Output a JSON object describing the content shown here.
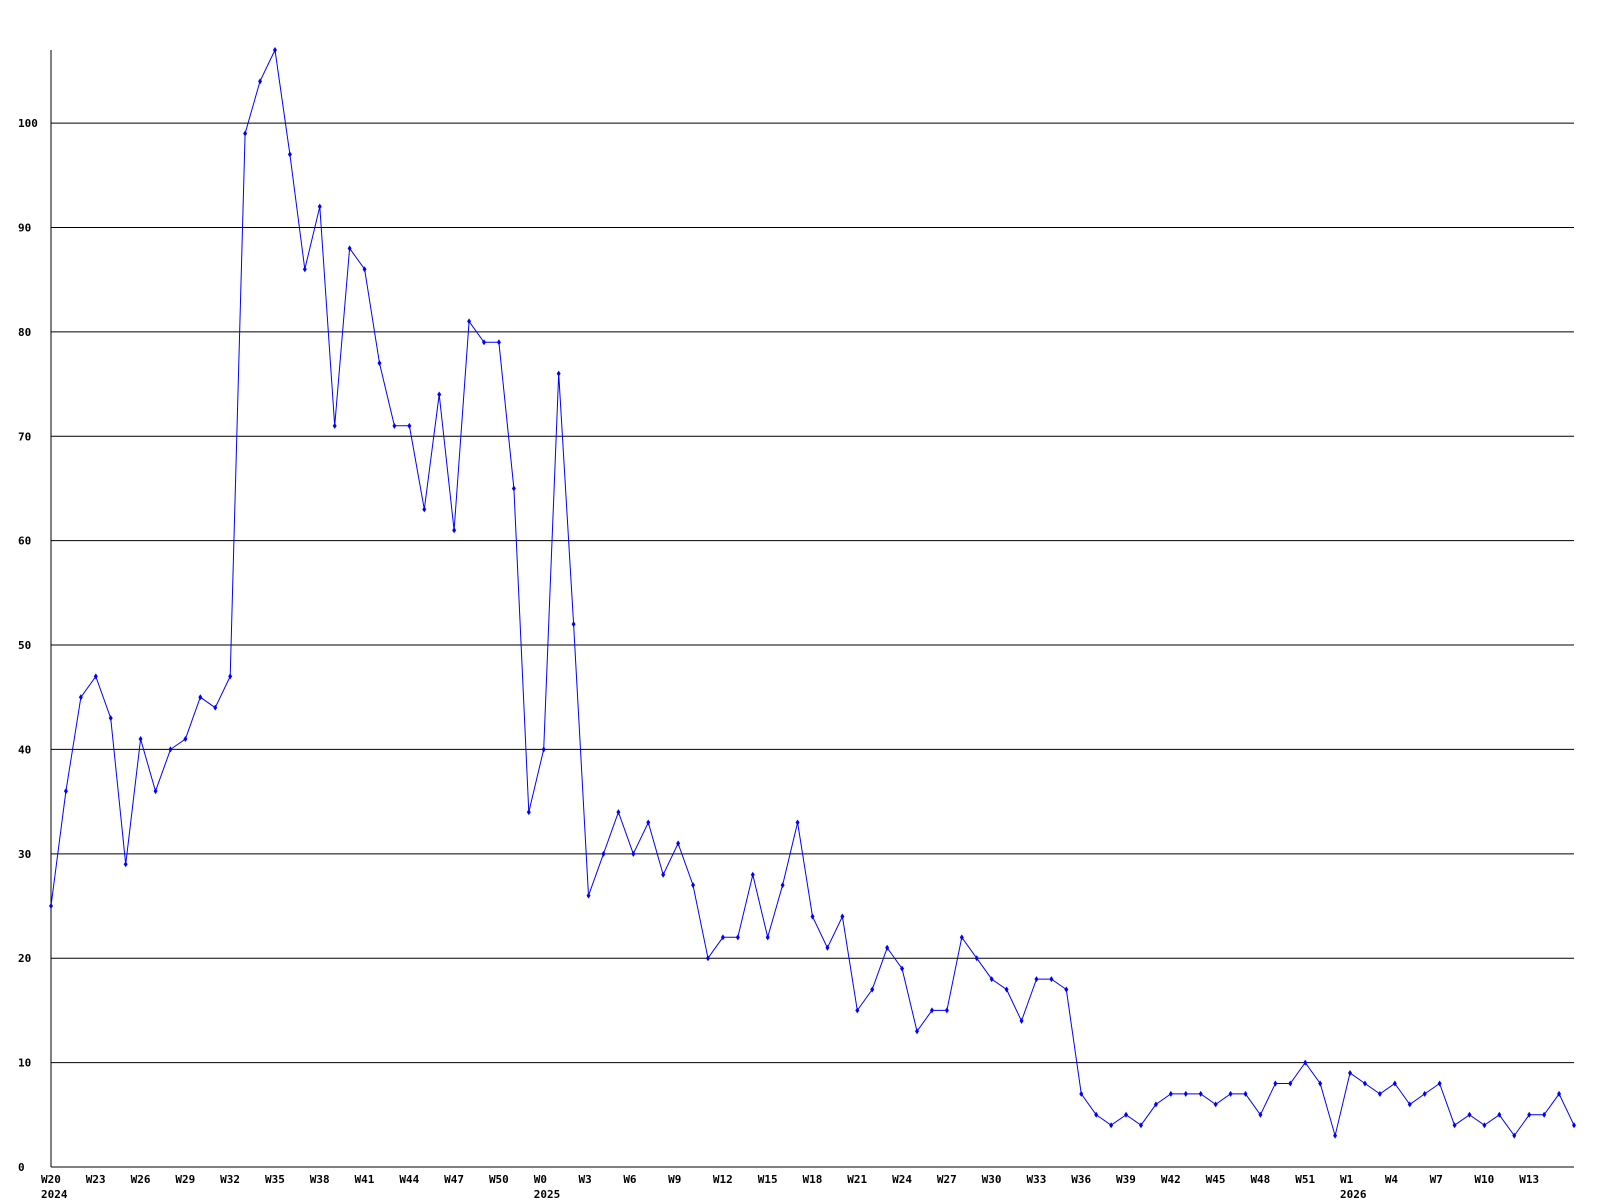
{
  "chart_data": {
    "type": "line",
    "title": "",
    "xlabel": "",
    "ylabel": "",
    "ylim": [
      0,
      107
    ],
    "yticks": [
      0,
      10,
      20,
      30,
      40,
      50,
      60,
      70,
      80,
      90,
      100
    ],
    "grid": "horizontal",
    "line_color": "#0000ff",
    "grid_color": "#000000",
    "x": [
      "2024-W20",
      "2024-W21",
      "2024-W22",
      "2024-W23",
      "2024-W24",
      "2024-W25",
      "2024-W26",
      "2024-W27",
      "2024-W28",
      "2024-W29",
      "2024-W30",
      "2024-W31",
      "2024-W32",
      "2024-W33",
      "2024-W34",
      "2024-W35",
      "2024-W36",
      "2024-W37",
      "2024-W38",
      "2024-W39",
      "2024-W40",
      "2024-W41",
      "2024-W42",
      "2024-W43",
      "2024-W44",
      "2024-W45",
      "2024-W46",
      "2024-W47",
      "2024-W48",
      "2024-W49",
      "2024-W50",
      "2024-W51",
      "2024-W52",
      "2025-W0",
      "2025-W1",
      "2025-W2",
      "2025-W3",
      "2025-W4",
      "2025-W5",
      "2025-W6",
      "2025-W7",
      "2025-W8",
      "2025-W9",
      "2025-W10",
      "2025-W11",
      "2025-W12",
      "2025-W13",
      "2025-W14",
      "2025-W15",
      "2025-W16",
      "2025-W17",
      "2025-W18",
      "2025-W19",
      "2025-W20",
      "2025-W21",
      "2025-W22",
      "2025-W23",
      "2025-W24",
      "2025-W25",
      "2025-W26",
      "2025-W27",
      "2025-W28",
      "2025-W29",
      "2025-W30",
      "2025-W31",
      "2025-W32",
      "2025-W33",
      "2025-W34",
      "2025-W35",
      "2025-W36",
      "2025-W37",
      "2025-W38",
      "2025-W39",
      "2025-W40",
      "2025-W41",
      "2025-W42",
      "2025-W43",
      "2025-W44",
      "2025-W45",
      "2025-W46",
      "2025-W47",
      "2025-W48",
      "2025-W49",
      "2025-W50",
      "2025-W51",
      "2025-W52",
      "2026-W0",
      "2026-W1",
      "2026-W2",
      "2026-W3",
      "2026-W4",
      "2026-W5",
      "2026-W6",
      "2026-W7",
      "2026-W8",
      "2026-W9",
      "2026-W10",
      "2026-W11",
      "2026-W12",
      "2026-W13",
      "2026-W14",
      "2026-W15",
      "2026-W16"
    ],
    "values": [
      25,
      36,
      45,
      47,
      43,
      29,
      41,
      36,
      40,
      41,
      45,
      44,
      47,
      99,
      104,
      107,
      97,
      86,
      92,
      71,
      88,
      86,
      77,
      71,
      71,
      63,
      74,
      61,
      81,
      79,
      79,
      65,
      34,
      40,
      76,
      52,
      26,
      30,
      34,
      30,
      33,
      28,
      31,
      27,
      20,
      22,
      22,
      28,
      22,
      27,
      33,
      24,
      21,
      24,
      15,
      17,
      21,
      19,
      13,
      15,
      15,
      22,
      20,
      18,
      17,
      14,
      18,
      18,
      17,
      7,
      5,
      4,
      5,
      4,
      6,
      7,
      7,
      7,
      6,
      7,
      7,
      5,
      8,
      8,
      10,
      8,
      3,
      9,
      8,
      7,
      8,
      6,
      7,
      8,
      4,
      5,
      4,
      5,
      3,
      5,
      5,
      7,
      4
    ],
    "xticks": [
      {
        "label": "W20",
        "year": "2024",
        "at": "2024-W20"
      },
      {
        "label": "W23",
        "at": "2024-W23"
      },
      {
        "label": "W26",
        "at": "2024-W26"
      },
      {
        "label": "W29",
        "at": "2024-W29"
      },
      {
        "label": "W32",
        "at": "2024-W32"
      },
      {
        "label": "W35",
        "at": "2024-W35"
      },
      {
        "label": "W38",
        "at": "2024-W38"
      },
      {
        "label": "W41",
        "at": "2024-W41"
      },
      {
        "label": "W44",
        "at": "2024-W44"
      },
      {
        "label": "W47",
        "at": "2024-W47"
      },
      {
        "label": "W50",
        "at": "2024-W50"
      },
      {
        "label": "W0",
        "year": "2025",
        "at": "2025-W0"
      },
      {
        "label": "W3",
        "at": "2025-W3"
      },
      {
        "label": "W6",
        "at": "2025-W6"
      },
      {
        "label": "W9",
        "at": "2025-W9"
      },
      {
        "label": "W12",
        "at": "2025-W12"
      },
      {
        "label": "W15",
        "at": "2025-W15"
      },
      {
        "label": "W18",
        "at": "2025-W18"
      },
      {
        "label": "W21",
        "at": "2025-W21"
      },
      {
        "label": "W24",
        "at": "2025-W24"
      },
      {
        "label": "W27",
        "at": "2025-W27"
      },
      {
        "label": "W30",
        "at": "2025-W30"
      },
      {
        "label": "W33",
        "at": "2025-W33"
      },
      {
        "label": "W36",
        "at": "2025-W36"
      },
      {
        "label": "W39",
        "at": "2025-W39"
      },
      {
        "label": "W42",
        "at": "2025-W42"
      },
      {
        "label": "W45",
        "at": "2025-W45"
      },
      {
        "label": "W48",
        "at": "2025-W48"
      },
      {
        "label": "W51",
        "at": "2025-W51"
      },
      {
        "label": "W1",
        "year": "2026",
        "at": "2026-W1"
      },
      {
        "label": "W4",
        "at": "2026-W4"
      },
      {
        "label": "W7",
        "at": "2026-W7"
      },
      {
        "label": "W10",
        "at": "2026-W10"
      },
      {
        "label": "W13",
        "at": "2026-W13"
      }
    ]
  }
}
